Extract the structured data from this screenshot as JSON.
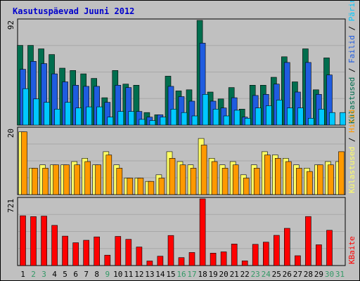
{
  "chart_data": {
    "type": "bar",
    "title": "Kasutuspäevad Juuni 2012",
    "categories": [
      "1",
      "2",
      "3",
      "4",
      "5",
      "6",
      "7",
      "8",
      "9",
      "10",
      "11",
      "12",
      "13",
      "14",
      "15",
      "16",
      "17",
      "18",
      "19",
      "20",
      "21",
      "22",
      "23",
      "24",
      "25",
      "26",
      "27",
      "28",
      "29",
      "30",
      "31"
    ],
    "weekend_days": [
      "2",
      "3",
      "9",
      "16",
      "17",
      "23",
      "24",
      "30",
      "31"
    ],
    "colors": {
      "weekday_label": "#000000",
      "weekend_label": "#339966",
      "visits": "#006e4e",
      "pages": "#1f5ce0",
      "files": "#00c8ff",
      "hits": "#ff9900",
      "hits_alt": "#ffff66",
      "kbytes": "#ff0000",
      "title": "#0000cc"
    },
    "panels": [
      {
        "id": "top",
        "ymax_label": "92",
        "ymax": 92,
        "legend": [
          {
            "text": "Külastused",
            "color": "#006e4e"
          },
          {
            "text": " / ",
            "color": "#000000"
          },
          {
            "text": "Failid",
            "color": "#1f5ce0"
          },
          {
            "text": " / ",
            "color": "#000000"
          },
          {
            "text": "Päringud",
            "color": "#00c8ff"
          }
        ],
        "series": [
          {
            "color": "#006e4e",
            "values": [
              70,
              70,
              67,
              62,
              50,
              48,
              45,
              41,
              24,
              48,
              36,
              35,
              11,
              9,
              43,
              30,
              31,
              92,
              29,
              23,
              33,
              14,
              35,
              35,
              42,
              60,
              38,
              67,
              31,
              59,
              0
            ]
          },
          {
            "color": "#1f5ce0",
            "values": [
              49,
              56,
              54,
              45,
              38,
              35,
              34,
              34,
              20,
              35,
              33,
              12,
              7,
              9,
              34,
              25,
              21,
              72,
              21,
              15,
              24,
              7,
              26,
              27,
              36,
              55,
              29,
              55,
              27,
              44,
              0
            ]
          },
          {
            "color": "#00c8ff",
            "values": [
              32,
              23,
              20,
              14,
              20,
              15,
              16,
              16,
              7,
              12,
              12,
              5,
              4,
              7,
              14,
              11,
              8,
              27,
              14,
              8,
              13,
              6,
              15,
              17,
              22,
              15,
              15,
              6,
              14,
              11,
              11
            ]
          }
        ]
      },
      {
        "id": "middle",
        "ymax_label": "20",
        "ymax": 20,
        "legend": [
          {
            "text": "Külastused",
            "color": "#ffff66"
          },
          {
            "text": " / ",
            "color": "#000000"
          },
          {
            "text": "Hitid",
            "color": "#ff9900"
          }
        ],
        "series": [
          {
            "color": "#ffff66",
            "values": [
              19,
              8,
              9,
              9,
              9,
              10,
              11,
              9,
              13,
              9,
              5,
              5,
              4,
              6,
              13,
              10,
              9,
              17,
              11,
              9,
              10,
              6,
              9,
              13,
              12,
              11,
              9,
              8,
              9,
              10,
              10
            ]
          },
          {
            "color": "#ff9900",
            "values": [
              19,
              8,
              8,
              9,
              9,
              9,
              10,
              9,
              12,
              8,
              5,
              5,
              4,
              5,
              11,
              9,
              8,
              15,
              10,
              8,
              9,
              5,
              8,
              12,
              11,
              10,
              8,
              7,
              9,
              9,
              13
            ]
          }
        ]
      },
      {
        "id": "bottom",
        "ymax_label": "721",
        "ymax": 721,
        "legend": [
          {
            "text": "KBaite",
            "color": "#ff0000"
          }
        ],
        "series": [
          {
            "color": "#ff0000",
            "values": [
              538,
              529,
              534,
              434,
              318,
              247,
              273,
              310,
              112,
              315,
              283,
              200,
              49,
              101,
              325,
              86,
              141,
              721,
              134,
              148,
              233,
              51,
              229,
              253,
              326,
              402,
              106,
              530,
              225,
              381,
              0
            ]
          }
        ]
      }
    ]
  }
}
